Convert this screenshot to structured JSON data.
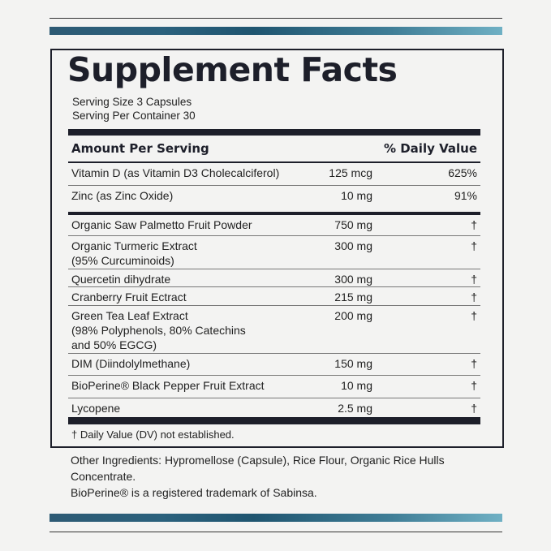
{
  "title": "Supplement Facts",
  "serving_size": "Serving Size 3 Capsules",
  "servings_per_container": "Serving Per Container 30",
  "header": {
    "amount": "Amount Per Serving",
    "daily_value": "% Daily Value"
  },
  "rows": [
    {
      "name": "Vitamin D (as Vitamin D3 Cholecalciferol)",
      "amount": "125 mcg",
      "dv": "625%"
    },
    {
      "name": "Zinc (as Zinc Oxide)",
      "amount": "10 mg",
      "dv": "91%"
    },
    {
      "name": "Organic Saw Palmetto Fruit Powder",
      "amount": "750 mg",
      "dv": "†"
    },
    {
      "name": "Organic Turmeric Extract\n(95% Curcuminoids)",
      "amount": "300 mg",
      "dv": "†"
    },
    {
      "name": "Quercetin dihydrate",
      "amount": "300 mg",
      "dv": "†"
    },
    {
      "name": "Cranberry Fruit Ectract",
      "amount": "215 mg",
      "dv": "†"
    },
    {
      "name": "Green Tea Leaf Extract\n(98% Polyphenols, 80% Catechins\nand 50% EGCG)",
      "amount": "200 mg",
      "dv": "†"
    },
    {
      "name": "DIM (Diindolylmethane)",
      "amount": "150 mg",
      "dv": "†"
    },
    {
      "name": "BioPerine® Black Pepper Fruit Extract",
      "amount": "10 mg",
      "dv": "†"
    },
    {
      "name": "Lycopene",
      "amount": "2.5 mg",
      "dv": "†"
    }
  ],
  "footnote": "† Daily Value (DV) not established.",
  "other_ingredients": {
    "label": "Other Ingredients:",
    "text": " Hypromellose (Capsule), Rice Flour, Organic Rice Hulls Concentrate."
  },
  "trademark": "BioPerine® is a registered trademark of Sabinsa.",
  "colors": {
    "text": "#1d1f2a",
    "accent_gradient_start": "#2d5a74",
    "accent_gradient_end": "#6fb0c4"
  }
}
